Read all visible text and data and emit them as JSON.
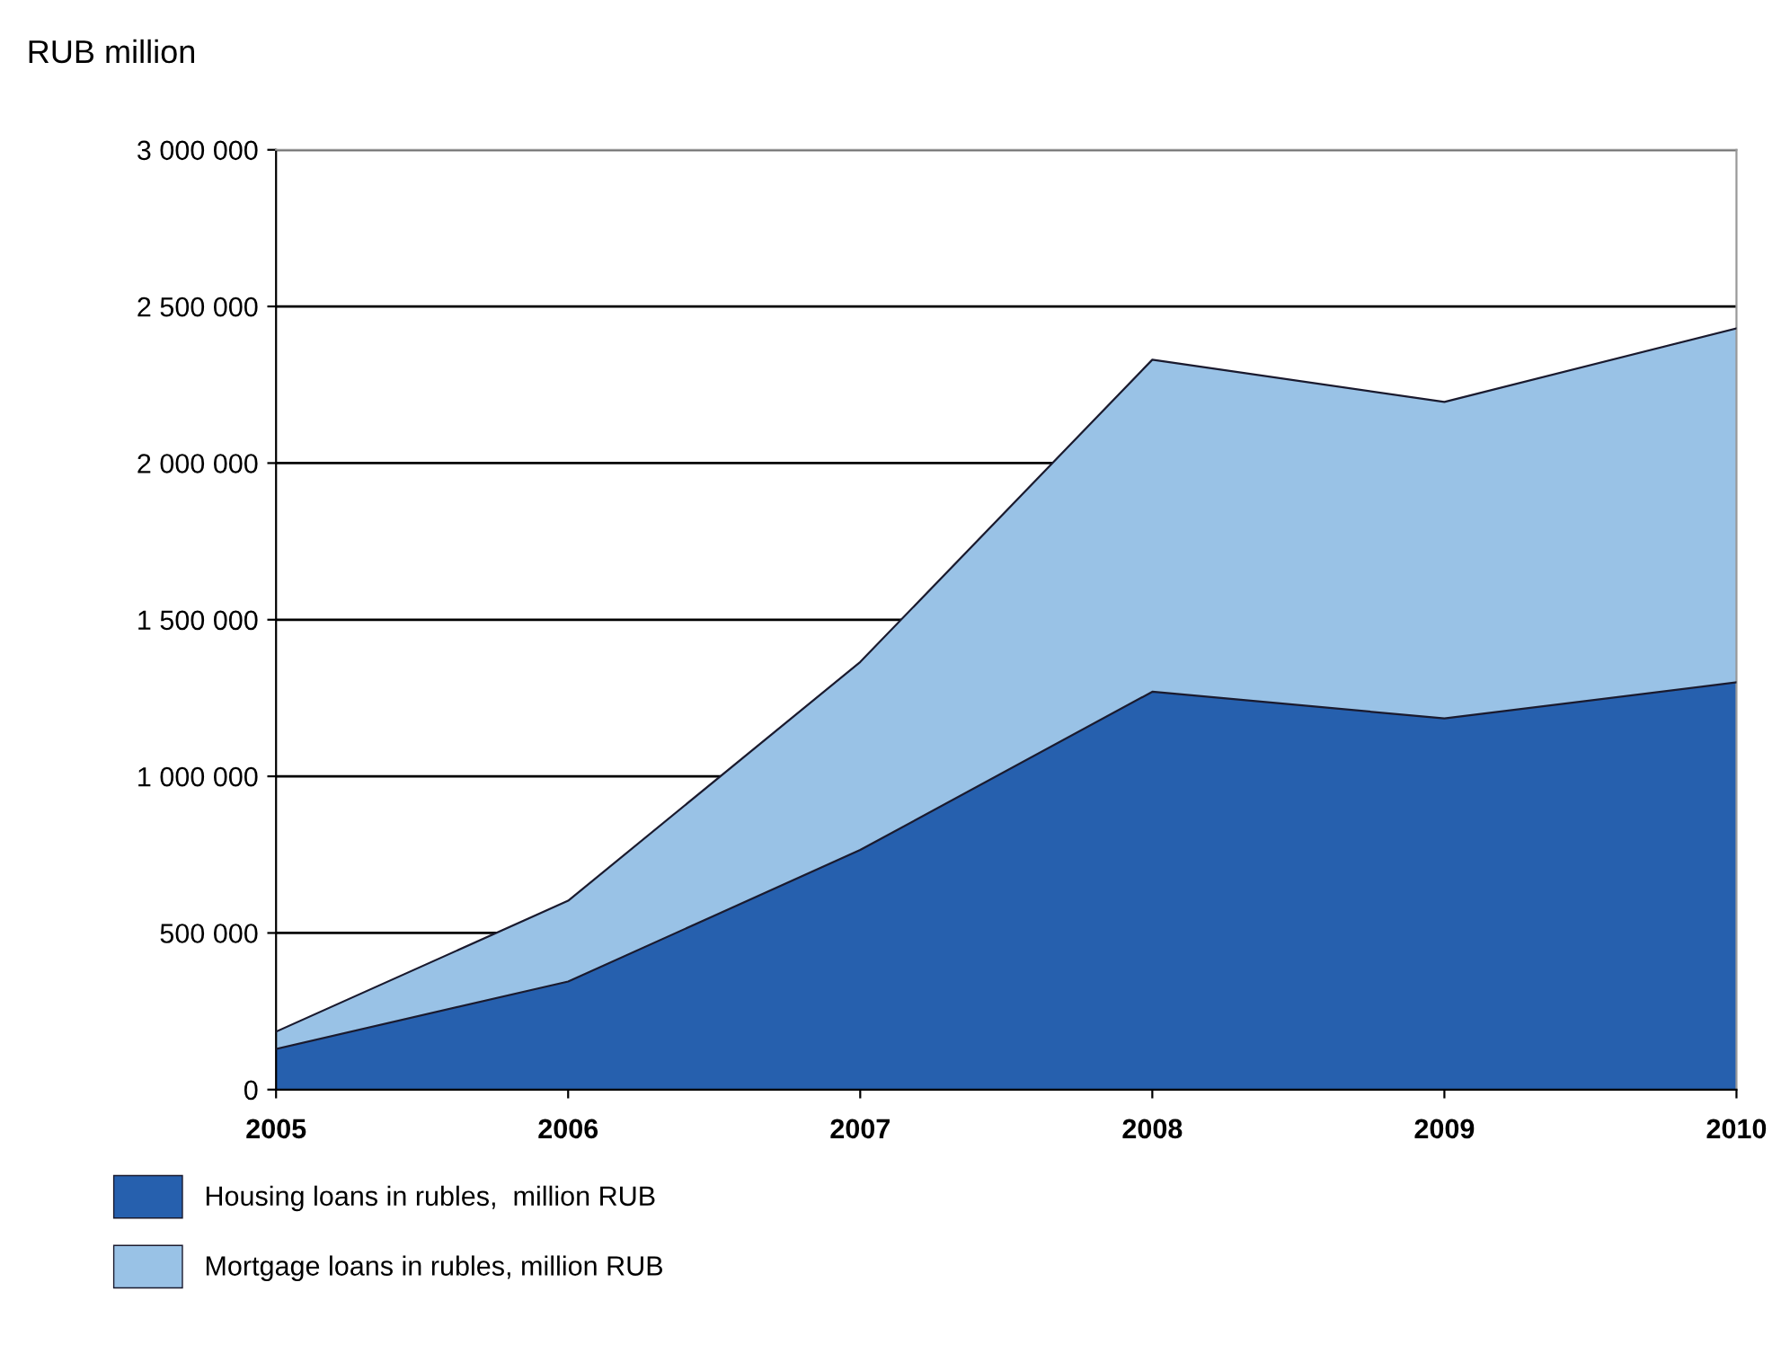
{
  "chart_data": {
    "type": "area",
    "ylabel": "RUB million",
    "categories": [
      "2005",
      "2006",
      "2007",
      "2008",
      "2009",
      "2010"
    ],
    "stacked": true,
    "series": [
      {
        "name": "Housing loans in rubles,  million RUB",
        "color": "#2660ae",
        "values": [
          130000,
          345000,
          765000,
          1270000,
          1185000,
          1300000
        ]
      },
      {
        "name": "Mortgage loans in rubles, million RUB",
        "color": "#99c2e6",
        "values": [
          55000,
          258000,
          600000,
          1060000,
          1010000,
          1130000
        ]
      }
    ],
    "ylim": [
      0,
      3000000
    ],
    "yticks": [
      0,
      {
        "value": 500000,
        "label": "500 000"
      },
      {
        "value": 1000000,
        "label": "1 000 000"
      },
      {
        "value": 1500000,
        "label": "1 500 000"
      },
      {
        "value": 2000000,
        "label": "2 000 000"
      },
      {
        "value": 2500000,
        "label": "2 500 000"
      },
      {
        "value": 3000000,
        "label": "3 000 000"
      }
    ],
    "grid": "y",
    "legend": "bottom"
  }
}
